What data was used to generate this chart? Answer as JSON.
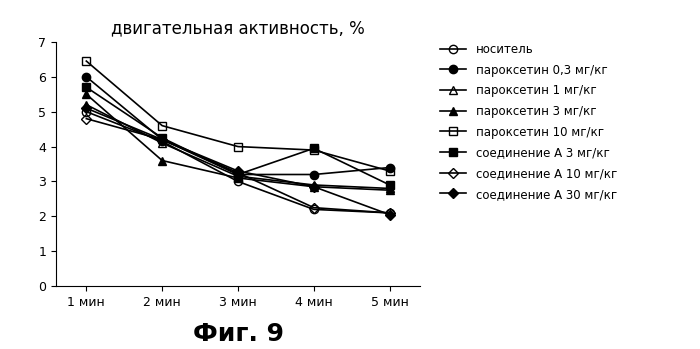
{
  "title": "двигательная активность, %",
  "caption": "Фиг. 9",
  "x_labels": [
    "1 мин",
    "2 мин",
    "3 мин",
    "4 мин",
    "5 мин"
  ],
  "x_values": [
    1,
    2,
    3,
    4,
    5
  ],
  "ylim": [
    0,
    7
  ],
  "yticks": [
    0,
    1,
    2,
    3,
    4,
    5,
    6,
    7
  ],
  "series": [
    {
      "label": "носитель",
      "values": [
        5.0,
        4.15,
        3.0,
        2.2,
        2.1
      ],
      "marker": "o",
      "markersize": 6,
      "fillstyle": "none",
      "linewidth": 1.2
    },
    {
      "label": "пароксетин 0,3 мг/кг",
      "values": [
        6.0,
        4.2,
        3.2,
        3.2,
        3.4
      ],
      "marker": "o",
      "markersize": 6,
      "fillstyle": "full",
      "linewidth": 1.2
    },
    {
      "label": "пароксетин 1 мг/кг",
      "values": [
        5.2,
        4.1,
        3.15,
        2.9,
        2.8
      ],
      "marker": "^",
      "markersize": 6,
      "fillstyle": "none",
      "linewidth": 1.2
    },
    {
      "label": "пароксетин 3 мг/кг",
      "values": [
        5.5,
        3.6,
        3.1,
        2.85,
        2.75
      ],
      "marker": "^",
      "markersize": 6,
      "fillstyle": "full",
      "linewidth": 1.2
    },
    {
      "label": "пароксетин 10 мг/кг",
      "values": [
        6.45,
        4.6,
        4.0,
        3.9,
        3.3
      ],
      "marker": "s",
      "markersize": 6,
      "fillstyle": "none",
      "linewidth": 1.2
    },
    {
      "label": "соединение А 3 мг/кг",
      "values": [
        5.7,
        4.25,
        3.2,
        3.95,
        2.9
      ],
      "marker": "s",
      "markersize": 6,
      "fillstyle": "full",
      "linewidth": 1.2
    },
    {
      "label": "соединение А 10 мг/кг",
      "values": [
        4.8,
        4.2,
        3.25,
        2.25,
        2.1
      ],
      "marker": "D",
      "markersize": 5,
      "fillstyle": "none",
      "linewidth": 1.2
    },
    {
      "label": "соединение А 30 мг/кг",
      "values": [
        5.1,
        4.2,
        3.3,
        2.85,
        2.05
      ],
      "marker": "D",
      "markersize": 5,
      "fillstyle": "full",
      "linewidth": 1.2
    }
  ],
  "background_color": "#ffffff",
  "title_fontsize": 12,
  "legend_fontsize": 8.5,
  "tick_fontsize": 9,
  "caption_fontsize": 18
}
